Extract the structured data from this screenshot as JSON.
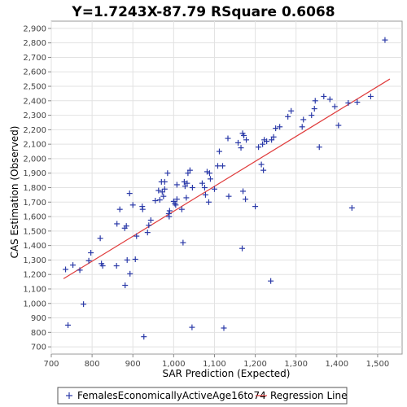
{
  "chart_data": {
    "type": "scatter",
    "title": "Y=1.7243X-87.79    RSquare 0.6068",
    "xlabel": "SAR Prediction (Expected)",
    "ylabel": "CAS Estimation (Observed)",
    "xlim": [
      700,
      1560
    ],
    "ylim": [
      650,
      2950
    ],
    "x_ticks": [
      700,
      800,
      900,
      1000,
      1100,
      1200,
      1300,
      1400,
      1500
    ],
    "x_tick_labels": [
      "700",
      "800",
      "900",
      "1,000",
      "1,100",
      "1,200",
      "1,300",
      "1,400",
      "1,500"
    ],
    "y_ticks": [
      700,
      800,
      900,
      1000,
      1100,
      1200,
      1300,
      1400,
      1500,
      1600,
      1700,
      1800,
      1900,
      2000,
      2100,
      2200,
      2300,
      2400,
      2500,
      2600,
      2700,
      2800,
      2900
    ],
    "y_tick_labels": [
      "700",
      "800",
      "900",
      "1,000",
      "1,100",
      "1,200",
      "1,300",
      "1,400",
      "1,500",
      "1,600",
      "1,700",
      "1,800",
      "1,900",
      "2,000",
      "2,100",
      "2,200",
      "2,300",
      "2,400",
      "2,500",
      "2,600",
      "2,700",
      "2,800",
      "2,900"
    ],
    "grid": true,
    "legend_position": "bottom",
    "series": [
      {
        "name": "FemalesEconomicallyActiveAge16to74",
        "marker": "plus",
        "color": "#2b3aa8",
        "points": [
          [
            735,
            1235
          ],
          [
            741,
            850
          ],
          [
            753,
            1265
          ],
          [
            770,
            1230
          ],
          [
            779,
            995
          ],
          [
            792,
            1295
          ],
          [
            797,
            1350
          ],
          [
            820,
            1450
          ],
          [
            823,
            1275
          ],
          [
            826,
            1260
          ],
          [
            860,
            1260
          ],
          [
            861,
            1550
          ],
          [
            868,
            1650
          ],
          [
            880,
            1520
          ],
          [
            881,
            1125
          ],
          [
            884,
            1535
          ],
          [
            886,
            1300
          ],
          [
            892,
            1760
          ],
          [
            893,
            1205
          ],
          [
            900,
            1680
          ],
          [
            906,
            1305
          ],
          [
            909,
            1465
          ],
          [
            923,
            1670
          ],
          [
            924,
            1650
          ],
          [
            927,
            770
          ],
          [
            936,
            1490
          ],
          [
            939,
            1540
          ],
          [
            944,
            1575
          ],
          [
            955,
            1710
          ],
          [
            963,
            1780
          ],
          [
            966,
            1715
          ],
          [
            970,
            1840
          ],
          [
            972,
            1770
          ],
          [
            975,
            1740
          ],
          [
            978,
            1790
          ],
          [
            978,
            1840
          ],
          [
            985,
            1900
          ],
          [
            988,
            1620
          ],
          [
            989,
            1600
          ],
          [
            990,
            1640
          ],
          [
            1000,
            1705
          ],
          [
            1003,
            1690
          ],
          [
            1005,
            1680
          ],
          [
            1008,
            1720
          ],
          [
            1008,
            1820
          ],
          [
            1020,
            1650
          ],
          [
            1023,
            1420
          ],
          [
            1026,
            1840
          ],
          [
            1028,
            1810
          ],
          [
            1031,
            1730
          ],
          [
            1033,
            1830
          ],
          [
            1035,
            1900
          ],
          [
            1040,
            1920
          ],
          [
            1045,
            835
          ],
          [
            1046,
            1800
          ],
          [
            1070,
            1830
          ],
          [
            1076,
            1800
          ],
          [
            1078,
            1750
          ],
          [
            1082,
            1910
          ],
          [
            1086,
            1700
          ],
          [
            1088,
            1900
          ],
          [
            1090,
            1860
          ],
          [
            1100,
            1790
          ],
          [
            1108,
            1950
          ],
          [
            1112,
            2050
          ],
          [
            1120,
            1950
          ],
          [
            1123,
            830
          ],
          [
            1133,
            2140
          ],
          [
            1135,
            1740
          ],
          [
            1158,
            2110
          ],
          [
            1165,
            2075
          ],
          [
            1168,
            1380
          ],
          [
            1169,
            2175
          ],
          [
            1170,
            1775
          ],
          [
            1172,
            2160
          ],
          [
            1176,
            1720
          ],
          [
            1178,
            2130
          ],
          [
            1200,
            1670
          ],
          [
            1208,
            2080
          ],
          [
            1215,
            1960
          ],
          [
            1218,
            2100
          ],
          [
            1220,
            1920
          ],
          [
            1222,
            2130
          ],
          [
            1228,
            2120
          ],
          [
            1238,
            1155
          ],
          [
            1240,
            2130
          ],
          [
            1245,
            2150
          ],
          [
            1250,
            2210
          ],
          [
            1260,
            2220
          ],
          [
            1280,
            2290
          ],
          [
            1288,
            2330
          ],
          [
            1315,
            2220
          ],
          [
            1318,
            2270
          ],
          [
            1338,
            2300
          ],
          [
            1345,
            2345
          ],
          [
            1347,
            2400
          ],
          [
            1357,
            2080
          ],
          [
            1368,
            2430
          ],
          [
            1383,
            2410
          ],
          [
            1395,
            2360
          ],
          [
            1404,
            2230
          ],
          [
            1428,
            2385
          ],
          [
            1437,
            1660
          ],
          [
            1450,
            2390
          ],
          [
            1483,
            2430
          ],
          [
            1518,
            2820
          ]
        ]
      },
      {
        "name": "Regression Line",
        "type": "line",
        "color": "#e03c3c",
        "slope": 1.7243,
        "intercept": -87.79,
        "x_range": [
          730,
          1530
        ]
      }
    ]
  }
}
